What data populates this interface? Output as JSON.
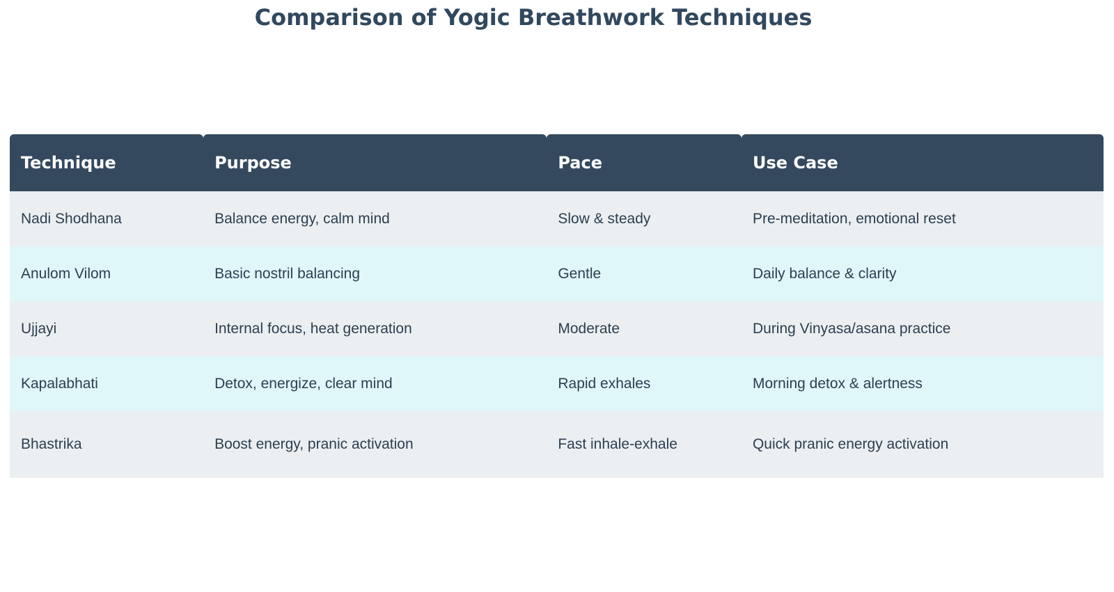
{
  "title": {
    "text": "Comparison of Yogic Breathwork Techniques",
    "color": "#31485e"
  },
  "table": {
    "header_bg": "#34495e",
    "header_text_color": "#ffffff",
    "row_alt_colors": [
      "#eceff1",
      "#e0f7fa"
    ],
    "body_text_color": "#2c3e50",
    "columns": [
      "Technique",
      "Purpose",
      "Pace",
      "Use Case"
    ],
    "rows": [
      [
        "Nadi Shodhana",
        "Balance energy, calm mind",
        "Slow & steady",
        "Pre-meditation, emotional reset"
      ],
      [
        "Anulom Vilom",
        "Basic nostril balancing",
        "Gentle",
        "Daily balance & clarity"
      ],
      [
        "Ujjayi",
        "Internal focus, heat generation",
        "Moderate",
        "During Vinyasa/asana practice"
      ],
      [
        "Kapalabhati",
        "Detox, energize, clear mind",
        "Rapid exhales",
        "Morning detox & alertness"
      ],
      [
        "Bhastrika",
        "Boost energy, pranic activation",
        "Fast inhale-exhale",
        "Quick pranic energy activation"
      ]
    ]
  }
}
